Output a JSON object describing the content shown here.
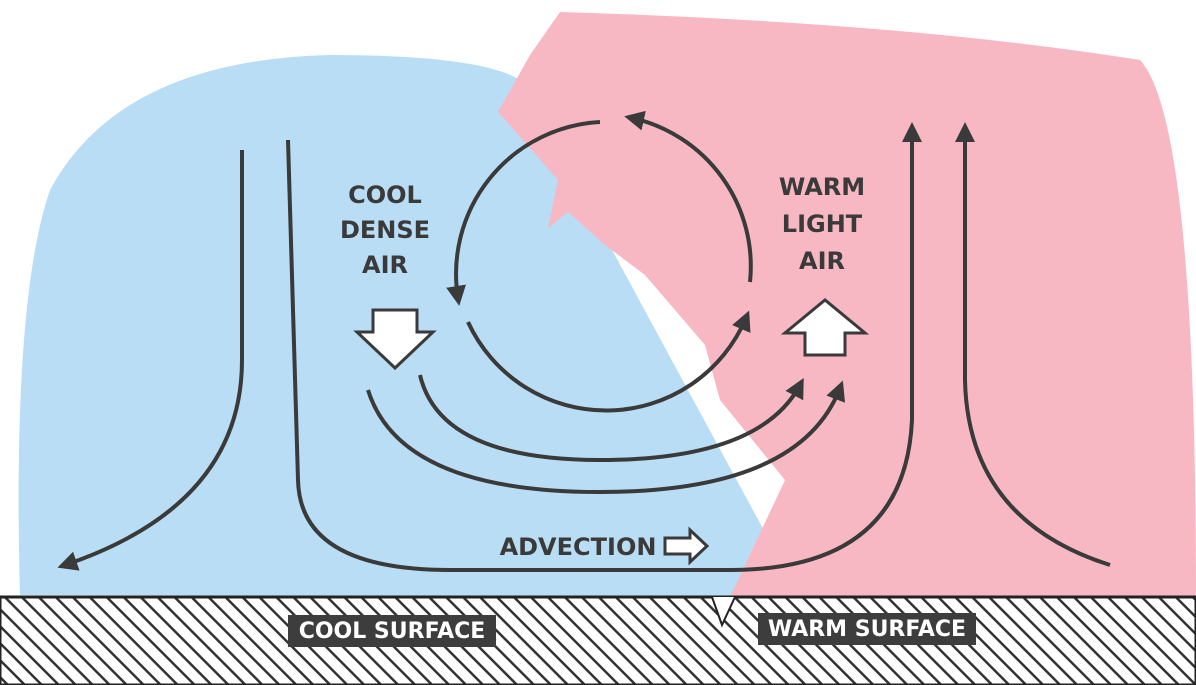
{
  "labels": {
    "cool_air": [
      "COOL",
      "DENSE",
      "AIR"
    ],
    "warm_air": [
      "WARM",
      "LIGHT",
      "AIR"
    ],
    "advection": "ADVECTION",
    "cool_surface": "COOL SURFACE",
    "warm_surface": "WARM SURFACE"
  }
}
